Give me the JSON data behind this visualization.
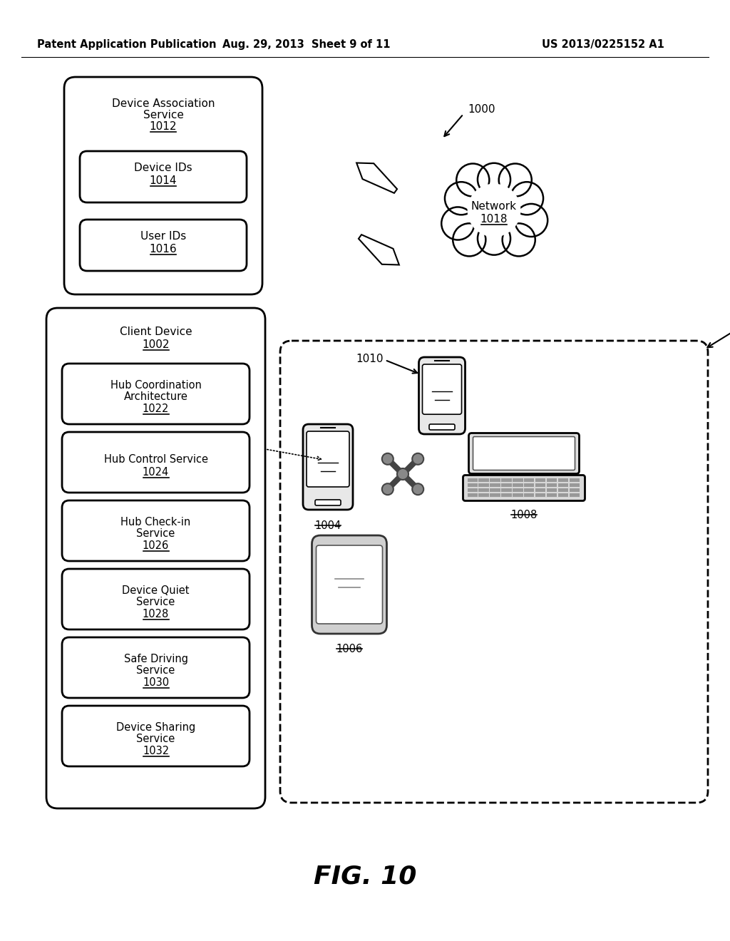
{
  "bg_color": "#ffffff",
  "header_left": "Patent Application Publication",
  "header_mid": "Aug. 29, 2013  Sheet 9 of 11",
  "header_right": "US 2013/0225152 A1",
  "fig_label": "FIG. 10"
}
